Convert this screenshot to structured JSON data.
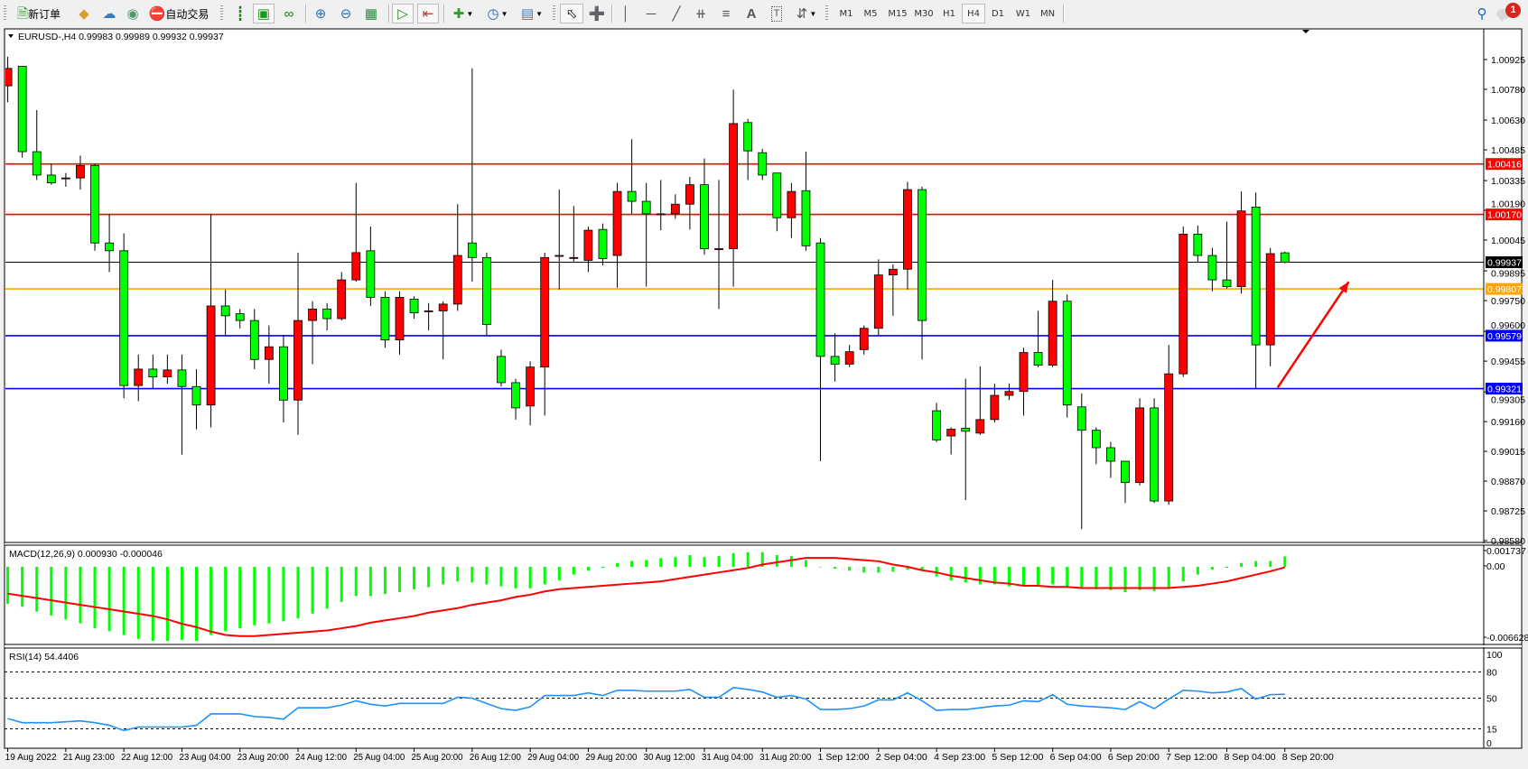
{
  "toolbar": {
    "new_order_label": "新订单",
    "auto_trading_label": "自动交易",
    "timeframes": [
      "M1",
      "M5",
      "M15",
      "M30",
      "H1",
      "H4",
      "D1",
      "W1",
      "MN"
    ],
    "active_timeframe": "H4",
    "notification_count": "1",
    "icons": [
      "new-order-icon",
      "market-watch-icon",
      "navigator-icon",
      "signals-icon",
      "auto-trading-icon",
      "bar-chart-icon",
      "candlestick-icon",
      "line-chart-icon",
      "zoom-in-icon",
      "zoom-out-icon",
      "tile-windows-icon",
      "auto-scroll-icon",
      "chart-shift-icon",
      "indicators-icon",
      "periods-icon",
      "templates-icon",
      "cursor-icon",
      "crosshair-icon",
      "vertical-line-icon",
      "horizontal-line-icon",
      "trendline-icon",
      "equidistant-channel-icon",
      "fibonacci-icon",
      "text-icon",
      "text-label-icon",
      "arrows-icon",
      "search-icon",
      "notifications-icon"
    ]
  },
  "chart": {
    "header": "EURUSD-,H4  0.99983 0.99989 0.99932 0.99937",
    "macd_label": "MACD(12,26,9) 0.000930 -0.000046",
    "rsi_label": "RSI(14) 54.4406"
  },
  "chart_data": {
    "type": "candlestick",
    "symbol": "EURUSD-",
    "timeframe": "H4",
    "colors": {
      "bull": "#ff0000",
      "bear": "#00ff00",
      "wick": "#000000",
      "macd_histogram": "#00ff00",
      "macd_signal": "#ff0000",
      "rsi": "#1e90ff"
    },
    "price_ticks": [
      "1.00925",
      "1.00780",
      "1.00630",
      "1.00485",
      "1.00335",
      "1.00190",
      "1.00045",
      "0.99895",
      "0.99750",
      "0.99600",
      "0.99455",
      "0.99305",
      "0.99160",
      "0.99015",
      "0.98870",
      "0.98725",
      "0.98580"
    ],
    "price_range": [
      0.9858,
      1.00925
    ],
    "ohlc_order": [
      "open",
      "high",
      "low",
      "close"
    ],
    "candles": [
      [
        1.00797,
        1.00939,
        1.00717,
        1.00882
      ],
      [
        1.00892,
        1.00892,
        1.00447,
        1.00476
      ],
      [
        1.00476,
        1.00679,
        1.00338,
        1.00362
      ],
      [
        1.00362,
        1.00419,
        1.00315,
        1.00324
      ],
      [
        1.00348,
        1.00372,
        1.00305,
        1.00348
      ],
      [
        1.00348,
        1.00457,
        1.00291,
        1.00409
      ],
      [
        1.00409,
        1.00419,
        0.99993,
        1.00031
      ],
      [
        1.00031,
        1.00173,
        0.99889,
        0.99993
      ],
      [
        0.99993,
        1.00078,
        0.99274,
        0.99336
      ],
      [
        0.99336,
        0.99487,
        0.9926,
        0.99416
      ],
      [
        0.99416,
        0.99487,
        0.99322,
        0.99378
      ],
      [
        0.99378,
        0.99487,
        0.99345,
        0.99412
      ],
      [
        0.99412,
        0.99487,
        0.99,
        0.99331
      ],
      [
        0.99331,
        0.99416,
        0.99123,
        0.99241
      ],
      [
        0.99241,
        1.00173,
        0.99132,
        0.99724
      ],
      [
        0.99724,
        0.99804,
        0.99582,
        0.99676
      ],
      [
        0.99686,
        0.99709,
        0.99615,
        0.99653
      ],
      [
        0.99653,
        0.99709,
        0.99416,
        0.99463
      ],
      [
        0.99463,
        0.99629,
        0.99345,
        0.99525
      ],
      [
        0.99525,
        0.99582,
        0.99156,
        0.99265
      ],
      [
        0.99265,
        0.99984,
        0.99095,
        0.99653
      ],
      [
        0.99653,
        0.99747,
        0.9944,
        0.99709
      ],
      [
        0.99709,
        0.99738,
        0.99605,
        0.99662
      ],
      [
        0.99662,
        0.99889,
        0.99653,
        0.99851
      ],
      [
        0.99851,
        1.00324,
        0.99842,
        0.99984
      ],
      [
        0.99993,
        1.00111,
        0.99724,
        0.99766
      ],
      [
        0.99766,
        0.99795,
        0.9952,
        0.99558
      ],
      [
        0.99558,
        0.99795,
        0.99487,
        0.99766
      ],
      [
        0.99757,
        0.99771,
        0.99662,
        0.9969
      ],
      [
        0.997,
        0.99738,
        0.99605,
        0.997
      ],
      [
        0.997,
        0.99747,
        0.99463,
        0.99733
      ],
      [
        0.99733,
        1.0022,
        0.997,
        0.9997
      ],
      [
        1.00031,
        1.00882,
        0.99842,
        0.9996
      ],
      [
        0.9996,
        0.99984,
        0.99582,
        0.99634
      ],
      [
        0.99478,
        0.99511,
        0.99331,
        0.9935
      ],
      [
        0.9935,
        0.99369,
        0.9917,
        0.99227
      ],
      [
        0.99236,
        0.99454,
        0.99142,
        0.99426
      ],
      [
        0.99426,
        0.99984,
        0.99189,
        0.9996
      ],
      [
        0.9997,
        1.00291,
        0.99804,
        0.9997
      ],
      [
        0.9996,
        1.00211,
        0.99936,
        0.9996
      ],
      [
        0.99946,
        1.00111,
        0.99889,
        1.00093
      ],
      [
        1.00097,
        1.00126,
        0.99922,
        0.99955
      ],
      [
        0.9997,
        1.00324,
        0.99813,
        1.00282
      ],
      [
        1.00282,
        1.00537,
        1.00173,
        1.00234
      ],
      [
        1.00234,
        1.00324,
        0.99818,
        1.00173
      ],
      [
        1.00173,
        1.00338,
        1.00093,
        1.00173
      ],
      [
        1.00173,
        1.00268,
        1.00149,
        1.0022
      ],
      [
        1.0022,
        1.00353,
        1.00097,
        1.00315
      ],
      [
        1.00315,
        1.00443,
        0.99974,
        1.00003
      ],
      [
        1.00003,
        1.00338,
        0.99709,
        1.00003
      ],
      [
        1.00003,
        1.00778,
        0.99818,
        1.00613
      ],
      [
        1.00618,
        1.00636,
        1.00338,
        1.0048
      ],
      [
        1.00471,
        1.0049,
        1.00338,
        1.00362
      ],
      [
        1.00372,
        1.00372,
        1.00088,
        1.00154
      ],
      [
        1.00154,
        1.00324,
        1.00055,
        1.00282
      ],
      [
        1.00286,
        1.00476,
        0.99993,
        1.00017
      ],
      [
        1.00031,
        1.00055,
        0.98967,
        0.99478
      ],
      [
        0.99478,
        0.99591,
        0.99355,
        0.9944
      ],
      [
        0.9944,
        0.99534,
        0.99426,
        0.99501
      ],
      [
        0.99511,
        0.99629,
        0.99487,
        0.99615
      ],
      [
        0.99615,
        0.99951,
        0.99582,
        0.99875
      ],
      [
        0.99875,
        0.99927,
        0.99676,
        0.99903
      ],
      [
        0.99903,
        1.00329,
        0.99804,
        1.00291
      ],
      [
        1.00291,
        1.00305,
        0.99463,
        0.99653
      ],
      [
        0.99213,
        0.99251,
        0.99061,
        0.99071
      ],
      [
        0.9909,
        0.99132,
        0.99,
        0.99123
      ],
      [
        0.99128,
        0.99369,
        0.98778,
        0.99113
      ],
      [
        0.99104,
        0.9943,
        0.99095,
        0.9917
      ],
      [
        0.9917,
        0.99345,
        0.99156,
        0.99288
      ],
      [
        0.99288,
        0.99345,
        0.99265,
        0.99307
      ],
      [
        0.99307,
        0.9952,
        0.99189,
        0.99497
      ],
      [
        0.99497,
        0.997,
        0.99426,
        0.99435
      ],
      [
        0.99435,
        0.99851,
        0.99426,
        0.99747
      ],
      [
        0.99747,
        0.9978,
        0.9918,
        0.99241
      ],
      [
        0.99232,
        0.99298,
        0.98636,
        0.99118
      ],
      [
        0.99118,
        0.99132,
        0.98953,
        0.99033
      ],
      [
        0.99033,
        0.99061,
        0.98886,
        0.98967
      ],
      [
        0.98967,
        0.98967,
        0.98763,
        0.98863
      ],
      [
        0.98863,
        0.99274,
        0.98849,
        0.99227
      ],
      [
        0.99227,
        0.99274,
        0.98763,
        0.98773
      ],
      [
        0.98773,
        0.99534,
        0.98754,
        0.99393
      ],
      [
        0.99393,
        1.00111,
        0.99378,
        1.00074
      ],
      [
        1.00074,
        1.00116,
        0.99936,
        0.9997
      ],
      [
        0.9997,
        1.00007,
        0.99795,
        0.99851
      ],
      [
        0.99851,
        1.00135,
        0.99809,
        0.99818
      ],
      [
        0.99818,
        1.00282,
        0.99785,
        1.00187
      ],
      [
        1.00206,
        1.00277,
        0.99322,
        0.99534
      ],
      [
        0.99534,
        1.00007,
        0.9943,
        0.99979
      ],
      [
        0.99983,
        0.99989,
        0.99932,
        0.99937
      ]
    ],
    "levels": [
      {
        "price": 1.00416,
        "label": "1.00416",
        "color": "#ff0000"
      },
      {
        "price": 1.0017,
        "label": "1.00170",
        "color": "#ff0000"
      },
      {
        "price": 0.99937,
        "label": "0.99937",
        "color": "#000000"
      },
      {
        "price": 0.99807,
        "label": "0.99807",
        "color": "#ffa500"
      },
      {
        "price": 0.99579,
        "label": "0.99579",
        "color": "#0000ff"
      },
      {
        "price": 0.99321,
        "label": "0.99321",
        "color": "#0000ff"
      }
    ],
    "arrow": {
      "start_price": 0.99326,
      "end_price": 0.99842,
      "color": "#ff0000"
    },
    "time_labels": [
      "19 Aug 2022",
      "21 Aug 23:00",
      "22 Aug 12:00",
      "23 Aug 04:00",
      "23 Aug 20:00",
      "24 Aug 12:00",
      "25 Aug 04:00",
      "25 Aug 20:00",
      "26 Aug 12:00",
      "29 Aug 04:00",
      "29 Aug 20:00",
      "30 Aug 12:00",
      "31 Aug 04:00",
      "31 Aug 20:00",
      "1 Sep 12:00",
      "2 Sep 04:00",
      "4 Sep 23:00",
      "5 Sep 12:00",
      "6 Sep 04:00",
      "6 Sep 20:00",
      "7 Sep 12:00",
      "8 Sep 04:00",
      "8 Sep 20:00"
    ],
    "macd": {
      "ticks": [
        "0.001737",
        "0.00",
        "-0.006628"
      ],
      "range": [
        -0.006628,
        0.001737
      ],
      "histogram": [
        -0.00331,
        -0.00358,
        -0.00401,
        -0.00436,
        -0.00471,
        -0.00506,
        -0.00549,
        -0.00576,
        -0.0061,
        -0.00645,
        -0.00663,
        -0.00663,
        -0.00654,
        -0.00663,
        -0.0061,
        -0.00576,
        -0.00549,
        -0.00523,
        -0.00506,
        -0.00488,
        -0.00462,
        -0.00419,
        -0.00375,
        -0.00314,
        -0.00262,
        -0.00262,
        -0.00244,
        -0.00227,
        -0.00201,
        -0.00183,
        -0.00157,
        -0.00131,
        -0.0014,
        -0.00157,
        -0.00174,
        -0.00192,
        -0.00192,
        -0.00157,
        -0.00122,
        -0.0007,
        -0.00035,
        -9e-05,
        0.00035,
        0.00052,
        0.00061,
        0.00078,
        0.00087,
        0.00105,
        0.00087,
        0.00096,
        0.00122,
        0.00131,
        0.00131,
        0.00105,
        0.00096,
        0.00061,
        0.0,
        -0.00017,
        -0.00035,
        -0.00052,
        -0.00052,
        -0.00044,
        -0.00026,
        -0.00035,
        -0.00087,
        -0.00122,
        -0.0014,
        -0.00157,
        -0.00157,
        -0.00174,
        -0.00166,
        -0.00174,
        -0.00157,
        -0.00183,
        -0.00192,
        -0.00201,
        -0.00209,
        -0.00227,
        -0.00209,
        -0.00218,
        -0.00183,
        -0.00131,
        -0.0007,
        -0.00026,
        -9e-05,
        0.00035,
        0.00052,
        0.00052,
        0.00093
      ],
      "signal": [
        -0.0024,
        -0.0026,
        -0.0028,
        -0.003,
        -0.0032,
        -0.0034,
        -0.0036,
        -0.0038,
        -0.004,
        -0.0042,
        -0.0044,
        -0.0047,
        -0.0051,
        -0.0054,
        -0.0058,
        -0.0061,
        -0.0062,
        -0.0062,
        -0.0061,
        -0.006,
        -0.0059,
        -0.0058,
        -0.0057,
        -0.0055,
        -0.0053,
        -0.005,
        -0.0048,
        -0.0046,
        -0.0044,
        -0.0041,
        -0.0039,
        -0.0037,
        -0.0034,
        -0.0032,
        -0.003,
        -0.0027,
        -0.0025,
        -0.0022,
        -0.002,
        -0.0019,
        -0.0018,
        -0.0017,
        -0.0016,
        -0.0015,
        -0.0014,
        -0.0013,
        -0.0011,
        -0.0009,
        -0.0007,
        -0.0005,
        -0.0003,
        -0.0001,
        0.0002,
        0.0004,
        0.0006,
        0.0008,
        0.0008,
        0.0008,
        0.0007,
        0.0006,
        0.0005,
        0.0002,
        0.0,
        -0.0003,
        -0.0005,
        -0.0008,
        -0.001,
        -0.0012,
        -0.0014,
        -0.0015,
        -0.0017,
        -0.0017,
        -0.0018,
        -0.0018,
        -0.0019,
        -0.0019,
        -0.0019,
        -0.0019,
        -0.0019,
        -0.0019,
        -0.0019,
        -0.0018,
        -0.0017,
        -0.0015,
        -0.0013,
        -0.001,
        -0.0007,
        -0.0004,
        -4.6e-05
      ]
    },
    "rsi": {
      "ticks": [
        "100",
        "80",
        "50",
        "15",
        "0"
      ],
      "levels": [
        80,
        50,
        15
      ],
      "range": [
        0,
        100
      ],
      "values": [
        26.7,
        22,
        22,
        22,
        23,
        24,
        22,
        19,
        13,
        17,
        17,
        17,
        17,
        19,
        32,
        32,
        32,
        29,
        28,
        26,
        39,
        39,
        39,
        42,
        47,
        43,
        41,
        44,
        44,
        44,
        44,
        51,
        50,
        44,
        38,
        36,
        40,
        53,
        53,
        53,
        56,
        53,
        59,
        59,
        58,
        58,
        58,
        60,
        51,
        51,
        62,
        60,
        57,
        51,
        53,
        49,
        37,
        37,
        38,
        41,
        48,
        48,
        56,
        47,
        36,
        37,
        37,
        39,
        41,
        42,
        47,
        46,
        54,
        43,
        41,
        40,
        39,
        37,
        46,
        38,
        49,
        59,
        58,
        56,
        57,
        61,
        49,
        54,
        54.4406
      ]
    }
  }
}
